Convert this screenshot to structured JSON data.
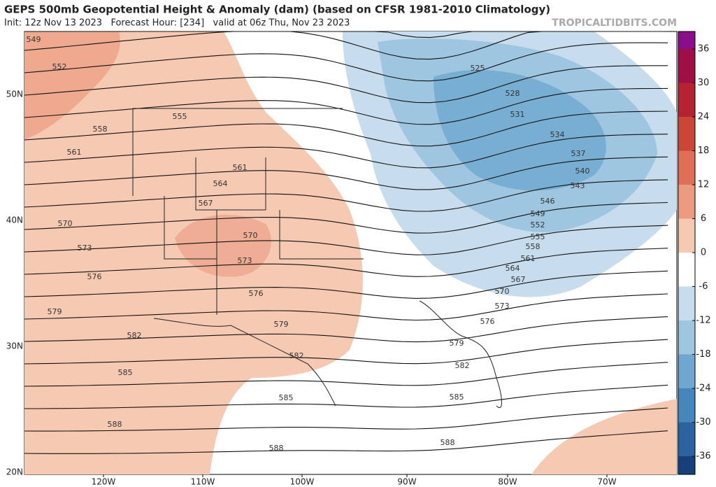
{
  "header": {
    "title": "GEPS 500mb Geopotential Height & Anomaly (dam) (based on CFSR 1981-2010 Climatology)",
    "subtitle": "Init: 12z Nov 13 2023   Forecast Hour: [234]   valid at 06z Thu, Nov 23 2023",
    "credit": "TROPICALTIDBITS.COM"
  },
  "map": {
    "latitude_labels": [
      "50N",
      "40N",
      "30N",
      "20N"
    ],
    "longitude_labels": [
      "120W",
      "110W",
      "100W",
      "90W",
      "80W",
      "70W"
    ],
    "contour_labels": [
      "549",
      "552",
      "555",
      "558",
      "561",
      "561",
      "564",
      "567",
      "570",
      "570",
      "573",
      "573",
      "576",
      "576",
      "579",
      "579",
      "582",
      "582",
      "585",
      "585",
      "588",
      "588",
      "525",
      "528",
      "531",
      "534",
      "537",
      "540",
      "543",
      "546",
      "549",
      "552",
      "555",
      "558",
      "561",
      "564",
      "567",
      "570",
      "573",
      "576",
      "579",
      "582",
      "585",
      "588"
    ]
  },
  "colorbar": {
    "ticks": [
      36,
      30,
      24,
      18,
      12,
      6,
      0,
      -6,
      -12,
      -18,
      -24,
      -30,
      -36
    ],
    "colors": [
      "#8a0d8a",
      "#9e1045",
      "#b52230",
      "#cc4638",
      "#de6e55",
      "#eb9b80",
      "#f6c9b3",
      "#ffffff",
      "#c7dded",
      "#9fc6e1",
      "#6fa7d0",
      "#4786bb",
      "#2b62a0",
      "#173f7a"
    ]
  }
}
